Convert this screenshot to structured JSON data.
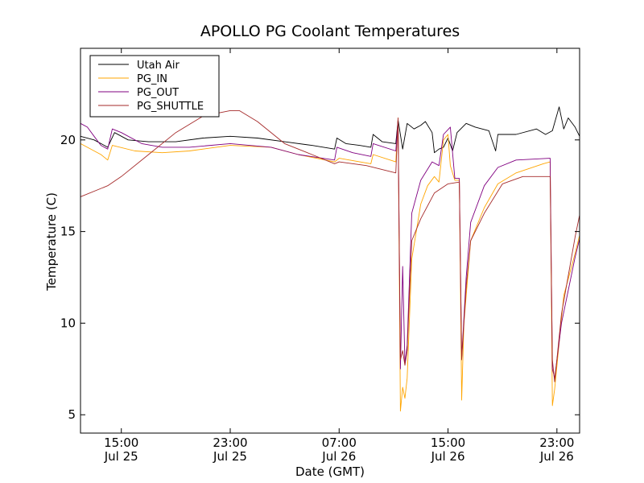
{
  "chart_data": {
    "type": "line",
    "title": "APOLLO PG Coolant Temperatures",
    "xlabel": "Date (GMT)",
    "ylabel": "Temperature (C)",
    "xlim": [
      "2013-07-25T12:00",
      "2013-07-27T00:40"
    ],
    "ylim": [
      4,
      25
    ],
    "yticks": [
      5,
      10,
      15,
      20
    ],
    "xticks": [
      {
        "at": "2013-07-25T15:00",
        "time": "15:00",
        "date": "Jul 25"
      },
      {
        "at": "2013-07-25T23:00",
        "time": "23:00",
        "date": "Jul 25"
      },
      {
        "at": "2013-07-26T07:00",
        "time": "07:00",
        "date": "Jul 26"
      },
      {
        "at": "2013-07-26T15:00",
        "time": "15:00",
        "date": "Jul 26"
      },
      {
        "at": "2013-07-26T23:00",
        "time": "23:00",
        "date": "Jul 26"
      }
    ],
    "grid": false,
    "legend_position": "top-left",
    "series": [
      {
        "name": "Utah Air",
        "color": "#000000",
        "points": [
          [
            "2013-07-25T12:00",
            20.2
          ],
          [
            "2013-07-25T13:00",
            20.0
          ],
          [
            "2013-07-25T14:00",
            19.6
          ],
          [
            "2013-07-25T14:30",
            20.4
          ],
          [
            "2013-07-25T15:30",
            20.0
          ],
          [
            "2013-07-25T17:00",
            19.9
          ],
          [
            "2013-07-25T19:00",
            19.9
          ],
          [
            "2013-07-25T21:00",
            20.1
          ],
          [
            "2013-07-25T23:00",
            20.2
          ],
          [
            "2013-07-26T01:00",
            20.1
          ],
          [
            "2013-07-26T03:00",
            19.9
          ],
          [
            "2013-07-26T05:00",
            19.7
          ],
          [
            "2013-07-26T06:40",
            19.5
          ],
          [
            "2013-07-26T06:50",
            20.1
          ],
          [
            "2013-07-26T07:30",
            19.8
          ],
          [
            "2013-07-26T08:30",
            19.7
          ],
          [
            "2013-07-26T09:20",
            19.6
          ],
          [
            "2013-07-26T09:30",
            20.3
          ],
          [
            "2013-07-26T10:10",
            19.9
          ],
          [
            "2013-07-26T11:10",
            19.8
          ],
          [
            "2013-07-26T11:20",
            21.1
          ],
          [
            "2013-07-26T11:40",
            19.5
          ],
          [
            "2013-07-26T12:00",
            20.9
          ],
          [
            "2013-07-26T12:30",
            20.6
          ],
          [
            "2013-07-26T13:00",
            20.8
          ],
          [
            "2013-07-26T13:20",
            21.0
          ],
          [
            "2013-07-26T13:50",
            20.4
          ],
          [
            "2013-07-26T14:00",
            19.3
          ],
          [
            "2013-07-26T14:20",
            19.5
          ],
          [
            "2013-07-26T14:40",
            19.6
          ],
          [
            "2013-07-26T15:00",
            20.1
          ],
          [
            "2013-07-26T15:20",
            19.4
          ],
          [
            "2013-07-26T15:40",
            20.4
          ],
          [
            "2013-07-26T16:20",
            20.9
          ],
          [
            "2013-07-26T17:00",
            20.7
          ],
          [
            "2013-07-26T18:00",
            20.5
          ],
          [
            "2013-07-26T18:30",
            19.4
          ],
          [
            "2013-07-26T18:40",
            20.3
          ],
          [
            "2013-07-26T20:00",
            20.3
          ],
          [
            "2013-07-26T21:30",
            20.6
          ],
          [
            "2013-07-26T22:10",
            20.3
          ],
          [
            "2013-07-26T22:40",
            20.5
          ],
          [
            "2013-07-26T23:10",
            21.8
          ],
          [
            "2013-07-26T23:30",
            20.6
          ],
          [
            "2013-07-26T23:50",
            21.2
          ],
          [
            "2013-07-27T00:20",
            20.7
          ],
          [
            "2013-07-27T00:40",
            20.2
          ]
        ]
      },
      {
        "name": "PG_IN",
        "color": "#ffa500",
        "points": [
          [
            "2013-07-25T12:00",
            19.8
          ],
          [
            "2013-07-25T13:30",
            19.2
          ],
          [
            "2013-07-25T14:00",
            18.9
          ],
          [
            "2013-07-25T14:20",
            19.7
          ],
          [
            "2013-07-25T16:00",
            19.4
          ],
          [
            "2013-07-25T18:00",
            19.3
          ],
          [
            "2013-07-25T20:00",
            19.4
          ],
          [
            "2013-07-25T23:00",
            19.7
          ],
          [
            "2013-07-26T02:00",
            19.6
          ],
          [
            "2013-07-26T04:00",
            19.2
          ],
          [
            "2013-07-26T06:40",
            18.8
          ],
          [
            "2013-07-26T07:00",
            19.0
          ],
          [
            "2013-07-26T09:20",
            18.7
          ],
          [
            "2013-07-26T09:30",
            19.2
          ],
          [
            "2013-07-26T11:10",
            18.8
          ],
          [
            "2013-07-26T11:20",
            21.2
          ],
          [
            "2013-07-26T11:30",
            5.2
          ],
          [
            "2013-07-26T11:40",
            6.5
          ],
          [
            "2013-07-26T11:50",
            5.9
          ],
          [
            "2013-07-26T12:00",
            7.0
          ],
          [
            "2013-07-26T12:20",
            13.5
          ],
          [
            "2013-07-26T13:00",
            16.5
          ],
          [
            "2013-07-26T13:30",
            17.5
          ],
          [
            "2013-07-26T14:00",
            18.0
          ],
          [
            "2013-07-26T14:20",
            17.7
          ],
          [
            "2013-07-26T14:40",
            20.0
          ],
          [
            "2013-07-26T15:00",
            20.3
          ],
          [
            "2013-07-26T15:10",
            18.6
          ],
          [
            "2013-07-26T15:30",
            17.8
          ],
          [
            "2013-07-26T15:50",
            17.8
          ],
          [
            "2013-07-26T16:00",
            5.8
          ],
          [
            "2013-07-26T16:10",
            10.0
          ],
          [
            "2013-07-26T16:40",
            14.5
          ],
          [
            "2013-07-26T17:40",
            16.3
          ],
          [
            "2013-07-26T18:40",
            17.6
          ],
          [
            "2013-07-26T20:00",
            18.2
          ],
          [
            "2013-07-26T22:00",
            18.7
          ],
          [
            "2013-07-26T22:30",
            18.8
          ],
          [
            "2013-07-26T22:40",
            5.5
          ],
          [
            "2013-07-26T22:50",
            6.4
          ],
          [
            "2013-07-26T23:30",
            11.5
          ],
          [
            "2013-07-27T00:20",
            13.8
          ],
          [
            "2013-07-27T00:40",
            14.8
          ]
        ]
      },
      {
        "name": "PG_OUT",
        "color": "#800080",
        "points": [
          [
            "2013-07-25T12:00",
            20.9
          ],
          [
            "2013-07-25T12:30",
            20.7
          ],
          [
            "2013-07-25T13:00",
            20.2
          ],
          [
            "2013-07-25T13:30",
            19.7
          ],
          [
            "2013-07-25T14:00",
            19.5
          ],
          [
            "2013-07-25T14:20",
            20.6
          ],
          [
            "2013-07-25T15:00",
            20.4
          ],
          [
            "2013-07-25T16:30",
            19.8
          ],
          [
            "2013-07-25T18:00",
            19.6
          ],
          [
            "2013-07-25T20:00",
            19.6
          ],
          [
            "2013-07-25T23:00",
            19.8
          ],
          [
            "2013-07-26T02:00",
            19.6
          ],
          [
            "2013-07-26T04:00",
            19.2
          ],
          [
            "2013-07-26T06:40",
            18.9
          ],
          [
            "2013-07-26T06:50",
            19.6
          ],
          [
            "2013-07-26T08:00",
            19.3
          ],
          [
            "2013-07-26T09:20",
            19.1
          ],
          [
            "2013-07-26T09:30",
            19.8
          ],
          [
            "2013-07-26T11:10",
            19.4
          ],
          [
            "2013-07-26T11:20",
            21.1
          ],
          [
            "2013-07-26T11:30",
            7.5
          ],
          [
            "2013-07-26T11:40",
            13.1
          ],
          [
            "2013-07-26T11:50",
            7.8
          ],
          [
            "2013-07-26T12:00",
            8.8
          ],
          [
            "2013-07-26T12:20",
            16.0
          ],
          [
            "2013-07-26T13:00",
            17.8
          ],
          [
            "2013-07-26T13:50",
            18.8
          ],
          [
            "2013-07-26T14:20",
            18.6
          ],
          [
            "2013-07-26T14:40",
            20.3
          ],
          [
            "2013-07-26T15:10",
            20.7
          ],
          [
            "2013-07-26T15:30",
            17.9
          ],
          [
            "2013-07-26T15:50",
            17.9
          ],
          [
            "2013-07-26T16:00",
            8.1
          ],
          [
            "2013-07-26T16:20",
            12.5
          ],
          [
            "2013-07-26T16:40",
            15.5
          ],
          [
            "2013-07-26T17:40",
            17.5
          ],
          [
            "2013-07-26T18:40",
            18.5
          ],
          [
            "2013-07-26T20:00",
            18.9
          ],
          [
            "2013-07-26T22:30",
            19.0
          ],
          [
            "2013-07-26T22:40",
            7.5
          ],
          [
            "2013-07-26T22:50",
            7.0
          ],
          [
            "2013-07-26T23:20",
            10.0
          ],
          [
            "2013-07-27T00:20",
            13.6
          ],
          [
            "2013-07-27T00:40",
            14.6
          ]
        ]
      },
      {
        "name": "PG_SHUTTLE",
        "color": "#a52a2a",
        "points": [
          [
            "2013-07-25T12:00",
            16.9
          ],
          [
            "2013-07-25T14:00",
            17.5
          ],
          [
            "2013-07-25T15:00",
            18.0
          ],
          [
            "2013-07-25T17:00",
            19.2
          ],
          [
            "2013-07-25T19:00",
            20.4
          ],
          [
            "2013-07-25T21:00",
            21.3
          ],
          [
            "2013-07-25T23:00",
            21.6
          ],
          [
            "2013-07-25T23:40",
            21.6
          ],
          [
            "2013-07-26T01:00",
            21.0
          ],
          [
            "2013-07-26T03:00",
            19.8
          ],
          [
            "2013-07-26T05:00",
            19.2
          ],
          [
            "2013-07-26T06:40",
            18.7
          ],
          [
            "2013-07-26T07:00",
            18.8
          ],
          [
            "2013-07-26T09:00",
            18.6
          ],
          [
            "2013-07-26T11:10",
            18.2
          ],
          [
            "2013-07-26T11:20",
            21.2
          ],
          [
            "2013-07-26T11:30",
            8.0
          ],
          [
            "2013-07-26T11:40",
            8.5
          ],
          [
            "2013-07-26T11:50",
            7.7
          ],
          [
            "2013-07-26T12:00",
            8.5
          ],
          [
            "2013-07-26T12:20",
            14.5
          ],
          [
            "2013-07-26T13:00",
            15.7
          ],
          [
            "2013-07-26T14:00",
            17.1
          ],
          [
            "2013-07-26T15:00",
            17.6
          ],
          [
            "2013-07-26T15:50",
            17.7
          ],
          [
            "2013-07-26T16:00",
            8.0
          ],
          [
            "2013-07-26T16:20",
            12.0
          ],
          [
            "2013-07-26T16:40",
            14.5
          ],
          [
            "2013-07-26T17:40",
            16.0
          ],
          [
            "2013-07-26T19:00",
            17.6
          ],
          [
            "2013-07-26T20:30",
            18.0
          ],
          [
            "2013-07-26T22:30",
            18.0
          ],
          [
            "2013-07-26T22:40",
            8.0
          ],
          [
            "2013-07-26T22:50",
            6.8
          ],
          [
            "2013-07-26T23:20",
            10.5
          ],
          [
            "2013-07-27T00:20",
            14.7
          ],
          [
            "2013-07-27T00:40",
            15.9
          ]
        ]
      }
    ]
  }
}
